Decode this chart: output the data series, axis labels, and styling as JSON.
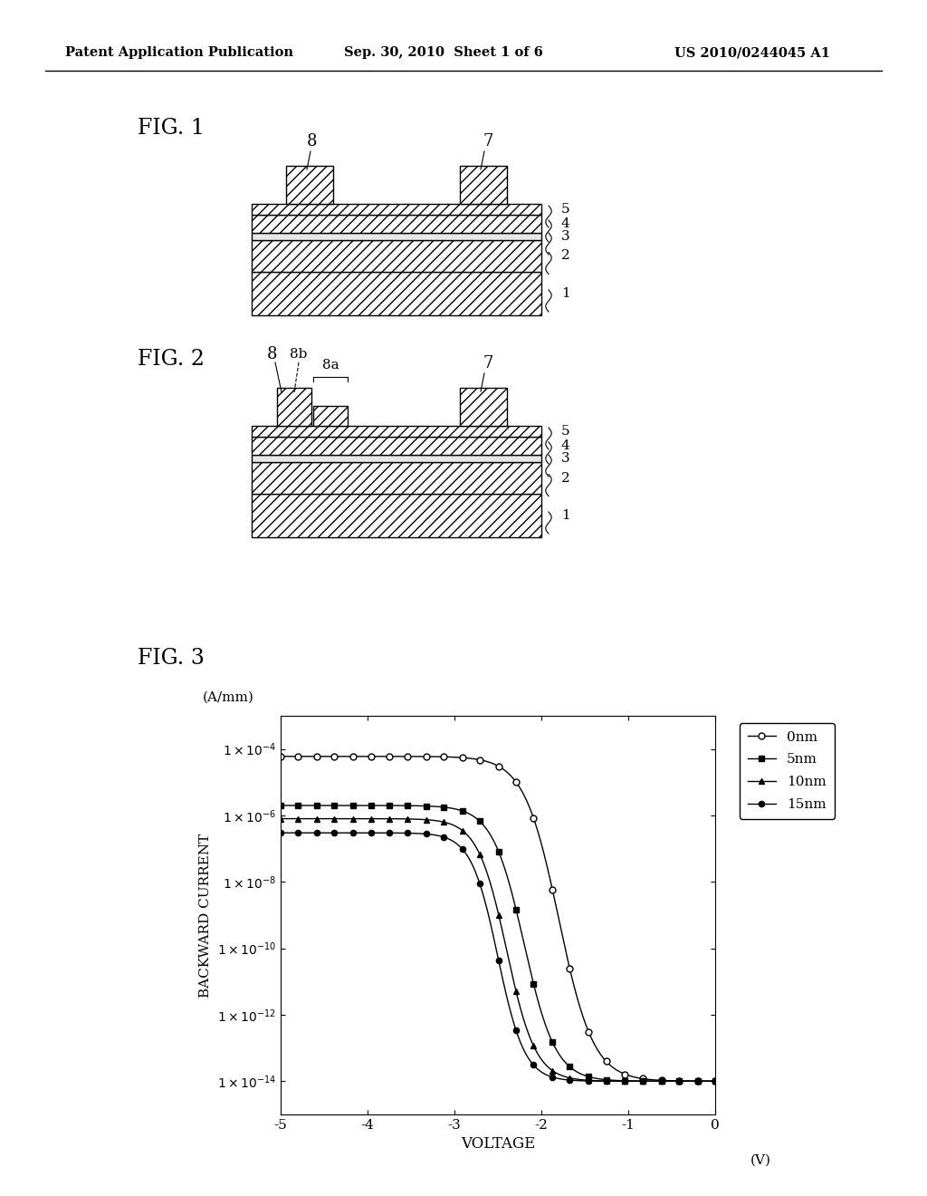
{
  "page_title_left": "Patent Application Publication",
  "page_title_center": "Sep. 30, 2010  Sheet 1 of 6",
  "page_title_right": "US 2010/0244045 A1",
  "fig1_label": "FIG. 1",
  "fig2_label": "FIG. 2",
  "fig3_label": "FIG. 3",
  "background_color": "#ffffff",
  "line_color": "#000000",
  "graph_xlabel": "VOLTAGE",
  "graph_ylabel": "BACKWARD CURRENT",
  "graph_xunit": "(V)",
  "graph_yunit": "(A/mm)",
  "legend_labels": [
    "0nm",
    "5nm",
    "10nm",
    "15nm"
  ]
}
